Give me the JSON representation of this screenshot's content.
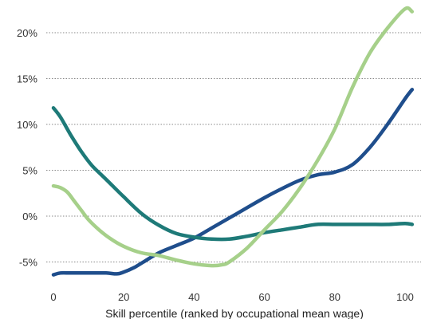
{
  "chart_data": {
    "type": "line",
    "title": "",
    "xlabel": "Skill percentile (ranked by occupational mean wage)",
    "ylabel": "",
    "xlim": [
      -2,
      103
    ],
    "ylim": [
      -7,
      23
    ],
    "x_ticks": [
      0,
      20,
      40,
      60,
      80,
      100
    ],
    "x_tick_labels": [
      "0",
      "20",
      "40",
      "60",
      "80",
      "100"
    ],
    "y_ticks": [
      -5,
      0,
      5,
      10,
      15,
      20
    ],
    "y_tick_labels": [
      "-5%",
      "0%",
      "5%",
      "10%",
      "15%",
      "20%"
    ],
    "grid": "horizontal-dotted",
    "legend": "none",
    "series": [
      {
        "color": "#1f4e8c",
        "x": [
          0,
          2,
          5,
          10,
          15,
          18,
          20,
          23,
          26,
          30,
          35,
          40,
          45,
          50,
          55,
          60,
          65,
          70,
          75,
          80,
          85,
          90,
          95,
          100,
          102
        ],
        "y": [
          -6.4,
          -6.2,
          -6.2,
          -6.2,
          -6.2,
          -6.3,
          -6.1,
          -5.6,
          -4.9,
          -4.0,
          -3.2,
          -2.4,
          -1.3,
          -0.2,
          0.9,
          2.0,
          3.0,
          3.9,
          4.5,
          4.8,
          5.6,
          7.5,
          10.0,
          12.8,
          13.8
        ]
      },
      {
        "color": "#1e7a78",
        "x": [
          0,
          2,
          5,
          8,
          11,
          15,
          20,
          25,
          30,
          35,
          40,
          45,
          50,
          55,
          60,
          65,
          70,
          75,
          80,
          85,
          90,
          95,
          100,
          102
        ],
        "y": [
          11.8,
          10.8,
          8.8,
          7.0,
          5.5,
          4.0,
          2.1,
          0.3,
          -1.0,
          -1.9,
          -2.3,
          -2.5,
          -2.5,
          -2.2,
          -1.8,
          -1.5,
          -1.2,
          -0.9,
          -0.9,
          -0.9,
          -0.9,
          -0.9,
          -0.8,
          -0.9
        ]
      },
      {
        "color": "#a6d08a",
        "x": [
          0,
          2,
          4,
          6,
          8,
          10,
          13,
          16,
          20,
          25,
          30,
          35,
          40,
          45,
          48,
          50,
          55,
          60,
          65,
          70,
          75,
          80,
          85,
          90,
          95,
          100,
          102
        ],
        "y": [
          3.3,
          3.1,
          2.6,
          1.6,
          0.6,
          -0.4,
          -1.5,
          -2.4,
          -3.3,
          -4.0,
          -4.3,
          -4.8,
          -5.2,
          -5.4,
          -5.3,
          -5.0,
          -3.5,
          -1.5,
          0.5,
          3.0,
          6.0,
          9.5,
          14.0,
          17.8,
          20.5,
          22.6,
          22.3
        ]
      }
    ]
  }
}
